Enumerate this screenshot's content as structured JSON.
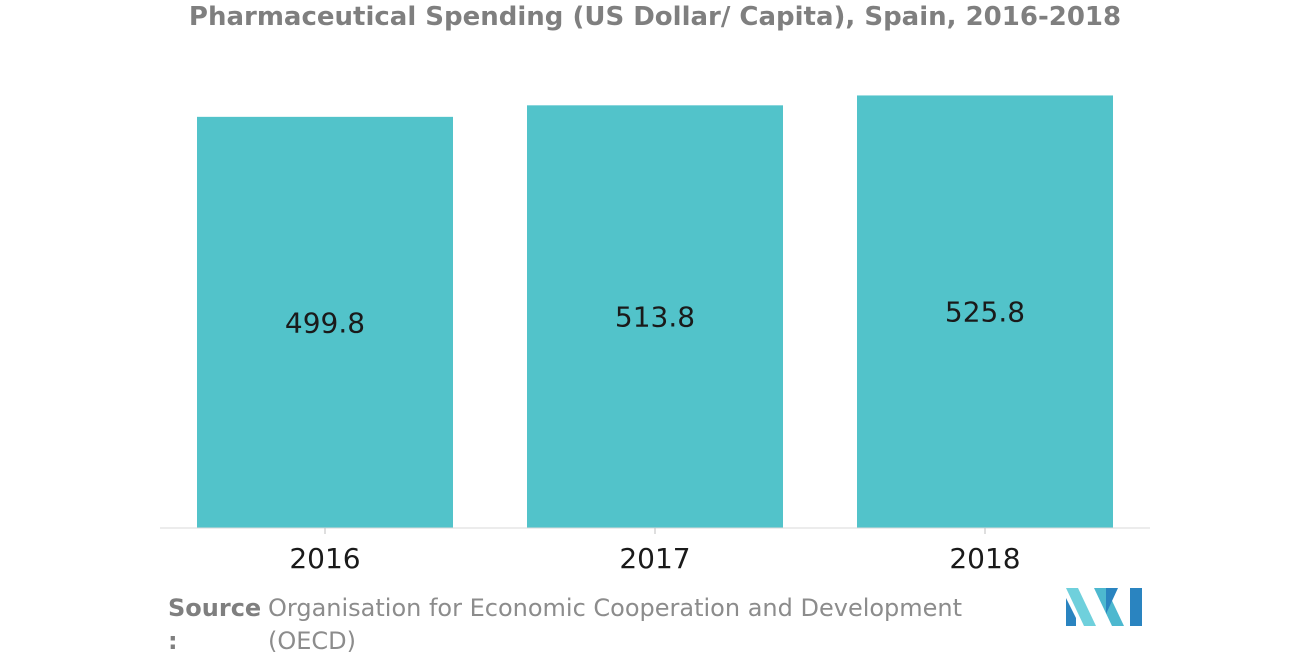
{
  "chart_data": {
    "type": "bar",
    "title": "Pharmaceutical Spending (US Dollar/ Capita), Spain, 2016-2018",
    "categories": [
      "2016",
      "2017",
      "2018"
    ],
    "values": [
      499.8,
      513.8,
      525.8
    ],
    "value_labels": [
      "499.8",
      "513.8",
      "525.8"
    ],
    "xlabel": "",
    "ylabel": "",
    "ylim": [
      0,
      530
    ],
    "grid": false,
    "legend": "none",
    "bar_color": "#52c3ca"
  },
  "source": {
    "label": "Source :",
    "text": "Organisation for Economic Cooperation and Development (OECD)"
  },
  "logo": {
    "icon": "mordor-logo-icon",
    "colors": [
      "#6fd0dc",
      "#2a84c0",
      "#4db8cf"
    ]
  }
}
